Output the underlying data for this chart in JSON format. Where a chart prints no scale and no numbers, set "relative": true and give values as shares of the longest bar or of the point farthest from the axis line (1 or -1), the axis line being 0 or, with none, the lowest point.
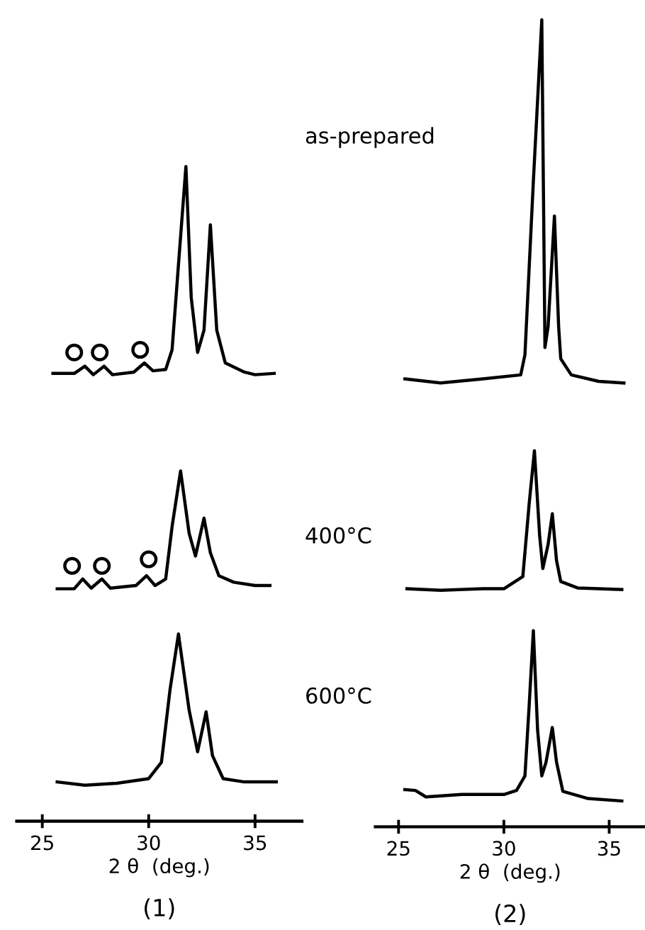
{
  "chart_data": [
    {
      "type": "line",
      "title": "(1)",
      "xlabel": "2 θ  (deg.)",
      "relative": true,
      "xlim": [
        23.8,
        37.2
      ],
      "xticks": [
        25,
        30,
        35
      ],
      "tick_labels": "x",
      "legend": false,
      "grid": false,
      "marker": "none",
      "line_style": "solid",
      "annotations": [
        "as-prepared",
        "400°C",
        "600°C"
      ],
      "series": [
        {
          "color": "#000000",
          "x": [
            25.5,
            26.5,
            27.0,
            27.4,
            27.9,
            28.3,
            29.3,
            29.8,
            30.2,
            30.8,
            31.1,
            31.4,
            31.75,
            32.0,
            32.3,
            32.6,
            32.9,
            33.2,
            33.6,
            34.5,
            35.0,
            35.9
          ],
          "values": [
            0.684,
            0.684,
            0.695,
            0.682,
            0.695,
            0.682,
            0.686,
            0.7,
            0.688,
            0.69,
            0.72,
            0.85,
            1.0,
            0.8,
            0.716,
            0.75,
            0.911,
            0.75,
            0.7,
            0.686,
            0.682,
            0.684
          ]
        },
        {
          "color": "#000000",
          "x": [
            25.7,
            26.5,
            26.9,
            27.3,
            27.8,
            28.2,
            29.4,
            29.9,
            30.3,
            30.8,
            31.1,
            31.5,
            31.9,
            32.2,
            32.6,
            32.9,
            33.3,
            34.0,
            35.0,
            35.7
          ],
          "values": [
            0.355,
            0.355,
            0.37,
            0.356,
            0.37,
            0.356,
            0.36,
            0.375,
            0.36,
            0.37,
            0.45,
            0.535,
            0.44,
            0.405,
            0.463,
            0.41,
            0.375,
            0.365,
            0.36,
            0.36
          ]
        },
        {
          "color": "#000000",
          "x": [
            25.7,
            27.0,
            28.5,
            30.0,
            30.6,
            31.0,
            31.4,
            31.9,
            32.3,
            32.7,
            33.0,
            33.5,
            34.5,
            36.0
          ],
          "values": [
            0.06,
            0.055,
            0.058,
            0.065,
            0.09,
            0.2,
            0.286,
            0.17,
            0.106,
            0.167,
            0.1,
            0.065,
            0.06,
            0.06
          ]
        },
        {
          "type": "scatter",
          "color": "#000000",
          "marker": "circle",
          "x": [
            26.5,
            27.7,
            29.6,
            26.4,
            27.8,
            30.0
          ],
          "values": [
            0.716,
            0.716,
            0.72,
            0.39,
            0.39,
            0.4
          ]
        }
      ]
    },
    {
      "type": "line",
      "title": "(2)",
      "xlabel": "2 θ  (deg.)",
      "relative": true,
      "xlim": [
        23.9,
        36.7
      ],
      "xticks": [
        25,
        30,
        35
      ],
      "tick_labels": "x",
      "legend": false,
      "grid": false,
      "marker": "none",
      "line_style": "solid",
      "series": [
        {
          "color": "#000000",
          "x": [
            25.3,
            27.0,
            29.0,
            30.8,
            31.0,
            31.4,
            31.8,
            31.95,
            32.1,
            32.4,
            32.6,
            32.7,
            33.2,
            34.5,
            35.7
          ],
          "values": [
            0.555,
            0.55,
            0.555,
            0.56,
            0.585,
            0.8,
            1.0,
            0.594,
            0.62,
            0.757,
            0.62,
            0.58,
            0.56,
            0.552,
            0.55
          ]
        },
        {
          "color": "#000000",
          "x": [
            25.4,
            27.0,
            29.0,
            30.0,
            30.9,
            31.2,
            31.45,
            31.7,
            31.85,
            32.1,
            32.3,
            32.5,
            32.7,
            33.5,
            35.6
          ],
          "values": [
            0.295,
            0.293,
            0.295,
            0.295,
            0.31,
            0.4,
            0.466,
            0.36,
            0.32,
            0.35,
            0.388,
            0.33,
            0.304,
            0.296,
            0.294
          ]
        },
        {
          "color": "#000000",
          "x": [
            25.3,
            25.8,
            26.3,
            28.0,
            30.0,
            30.6,
            31.0,
            31.2,
            31.4,
            31.6,
            31.8,
            32.0,
            32.3,
            32.5,
            32.8,
            34.0,
            35.6
          ],
          "values": [
            0.046,
            0.045,
            0.037,
            0.04,
            0.04,
            0.045,
            0.063,
            0.15,
            0.243,
            0.12,
            0.063,
            0.08,
            0.123,
            0.08,
            0.044,
            0.035,
            0.032
          ]
        }
      ]
    }
  ]
}
